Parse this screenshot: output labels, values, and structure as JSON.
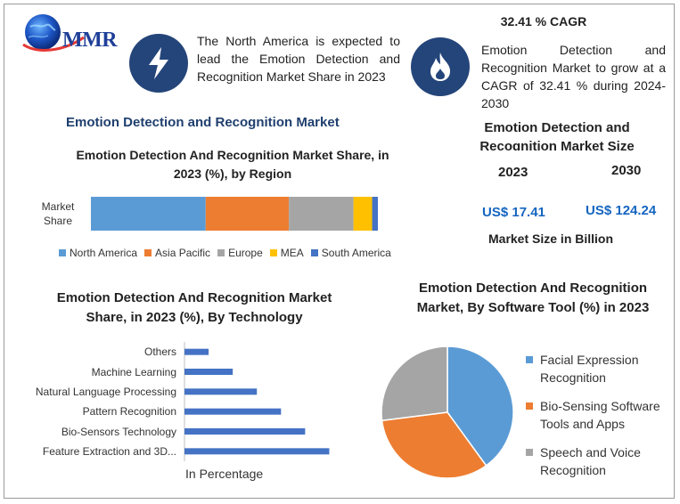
{
  "logo": {
    "text": "MMR"
  },
  "colors": {
    "icon_bg": "#24457a",
    "accent_title": "#1f3f6e",
    "money": "#1565c0",
    "blue": "#5b9bd5",
    "orange": "#ed7d31",
    "gray": "#a5a5a5",
    "yellow": "#ffc000",
    "dark_blue": "#4472c4"
  },
  "info_left": {
    "icon": "lightning-icon",
    "text": "The North America is expected to lead the Emotion Detection and Recognition Market Share in 2023"
  },
  "info_right": {
    "icon": "flame-icon",
    "heading": "32.41 % CAGR",
    "text": "Emotion Detection and Recognition Market to grow at a CAGR of 32.41 % during 2024-2030"
  },
  "section_title": "Emotion Detection and Recognition Market",
  "size_panel": {
    "title": "Emotion Detection and Recognition Market Size",
    "year_1": "2023",
    "year_2": "2030",
    "value_1": "US$ 17.41",
    "value_2": "US$ 124.24",
    "note": "Market Size in Billion"
  },
  "chart_data": [
    {
      "type": "bar",
      "orientation": "horizontal-stacked",
      "title": "Emotion Detection And Recognition Market Share, in 2023 (%), by Region",
      "categories": [
        "Market Share"
      ],
      "series": [
        {
          "name": "North America",
          "values": [
            40
          ],
          "color": "#5b9bd5"
        },
        {
          "name": "Asia Pacific",
          "values": [
            29
          ],
          "color": "#ed7d31"
        },
        {
          "name": "Europe",
          "values": [
            22.5
          ],
          "color": "#a5a5a5"
        },
        {
          "name": "MEA",
          "values": [
            6.5
          ],
          "color": "#ffc000"
        },
        {
          "name": "South America",
          "values": [
            2
          ],
          "color": "#4472c4"
        }
      ],
      "xlim": [
        0,
        100
      ],
      "legend": "bottom"
    },
    {
      "type": "bar",
      "orientation": "horizontal",
      "title": "Emotion Detection And Recognition Market Share, in 2023 (%), By Technology",
      "categories": [
        "Others",
        "Machine Learning",
        "Natural Language Processing",
        "Pattern Recognition",
        "Bio-Sensors Technology",
        "Feature Extraction and 3D..."
      ],
      "values": [
        4,
        8,
        12,
        16,
        20,
        24
      ],
      "xlabel": "In Percentage",
      "xlim": [
        0,
        26
      ],
      "color": "#4472c4",
      "grid": false
    },
    {
      "type": "pie",
      "title": "Emotion Detection And Recognition Market, By Software Tool (%) in 2023",
      "labels": [
        "Facial Expression Recognition",
        "Bio-Sensing Software Tools and Apps",
        "Speech and Voice Recognition"
      ],
      "values": [
        40,
        33,
        27
      ],
      "colors": [
        "#5b9bd5",
        "#ed7d31",
        "#a5a5a5"
      ],
      "legend": "right"
    }
  ]
}
